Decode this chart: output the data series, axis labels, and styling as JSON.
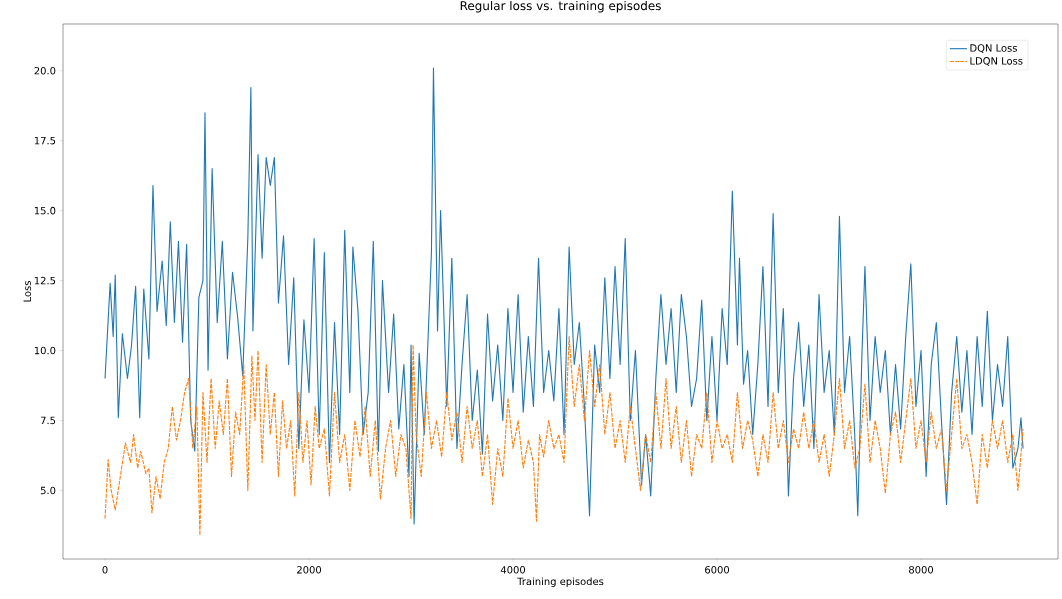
{
  "chart_data": {
    "type": "line",
    "title": "Regular loss vs. training episodes",
    "xlabel": "Training episodes",
    "ylabel": "Loss",
    "xlim": [
      -412,
      9343
    ],
    "ylim": [
      2.55,
      21.67
    ],
    "xticks": [
      0,
      2000,
      4000,
      6000,
      8000
    ],
    "yticks": [
      {
        "value": 5,
        "label": "5.0"
      },
      {
        "value": 7.5,
        "label": "7.5"
      },
      {
        "value": 10,
        "label": "10.0"
      },
      {
        "value": 12.5,
        "label": "12.5"
      },
      {
        "value": 15,
        "label": "15.0"
      },
      {
        "value": 17.5,
        "label": "17.5"
      },
      {
        "value": 20,
        "label": "20.0"
      }
    ],
    "legend": "top right",
    "grid": false,
    "marker": "none",
    "series": [
      {
        "name": "DQN Loss",
        "color": "#1f77b4",
        "line_style": "solid",
        "x": [
          0,
          50,
          80,
          100,
          130,
          170,
          220,
          260,
          300,
          340,
          380,
          430,
          470,
          510,
          560,
          600,
          640,
          680,
          720,
          760,
          800,
          840,
          880,
          920,
          960,
          980,
          1010,
          1050,
          1100,
          1150,
          1200,
          1250,
          1300,
          1350,
          1400,
          1430,
          1450,
          1500,
          1540,
          1580,
          1620,
          1660,
          1700,
          1750,
          1800,
          1850,
          1900,
          1950,
          2000,
          2050,
          2100,
          2150,
          2200,
          2250,
          2300,
          2350,
          2400,
          2430,
          2480,
          2530,
          2580,
          2630,
          2680,
          2720,
          2780,
          2830,
          2880,
          2930,
          2980,
          3000,
          3030,
          3080,
          3130,
          3200,
          3220,
          3260,
          3290,
          3350,
          3400,
          3450,
          3500,
          3550,
          3600,
          3650,
          3700,
          3750,
          3800,
          3850,
          3900,
          3950,
          4000,
          4050,
          4100,
          4150,
          4200,
          4250,
          4300,
          4350,
          4400,
          4450,
          4500,
          4550,
          4600,
          4650,
          4700,
          4750,
          4800,
          4850,
          4900,
          4950,
          5000,
          5050,
          5100,
          5150,
          5200,
          5260,
          5300,
          5350,
          5400,
          5450,
          5500,
          5550,
          5600,
          5650,
          5700,
          5750,
          5800,
          5850,
          5900,
          5950,
          6000,
          6050,
          6100,
          6150,
          6200,
          6220,
          6260,
          6300,
          6350,
          6400,
          6450,
          6500,
          6550,
          6600,
          6650,
          6700,
          6750,
          6800,
          6850,
          6900,
          6950,
          7000,
          7050,
          7100,
          7150,
          7200,
          7250,
          7300,
          7350,
          7380,
          7420,
          7450,
          7500,
          7550,
          7600,
          7650,
          7700,
          7750,
          7800,
          7850,
          7900,
          7950,
          8000,
          8050,
          8100,
          8150,
          8200,
          8250,
          8300,
          8350,
          8400,
          8450,
          8500,
          8550,
          8600,
          8650,
          8700,
          8750,
          8800,
          8850,
          8900,
          8950,
          8980,
          9000
        ],
        "values": [
          9.0,
          12.4,
          10.5,
          12.7,
          7.6,
          10.6,
          9.0,
          10.2,
          12.3,
          7.6,
          12.2,
          9.7,
          15.9,
          11.4,
          13.2,
          10.9,
          14.6,
          11.0,
          13.9,
          10.3,
          13.8,
          7.5,
          6.4,
          11.9,
          12.5,
          18.5,
          9.3,
          16.5,
          11.0,
          13.9,
          9.7,
          12.8,
          11.2,
          9.1,
          14.0,
          19.4,
          10.7,
          17.0,
          13.3,
          16.9,
          15.9,
          16.9,
          11.7,
          14.1,
          9.5,
          12.6,
          6.5,
          11.1,
          8.5,
          14.0,
          7.0,
          13.5,
          6.0,
          11.0,
          7.0,
          14.3,
          8.5,
          13.7,
          11.4,
          7.0,
          8.5,
          13.9,
          6.4,
          12.5,
          8.5,
          11.3,
          7.2,
          9.5,
          5.5,
          10.2,
          3.8,
          9.9,
          7.0,
          13.5,
          20.1,
          10.7,
          15.0,
          8.0,
          13.3,
          6.5,
          9.5,
          12.0,
          7.5,
          9.3,
          6.3,
          11.3,
          8.2,
          10.2,
          7.5,
          11.5,
          8.5,
          12.0,
          7.8,
          10.5,
          8.0,
          13.3,
          8.5,
          10.0,
          8.2,
          11.5,
          7.0,
          13.7,
          9.5,
          11.0,
          8.0,
          4.1,
          10.2,
          8.5,
          12.6,
          9.0,
          13.0,
          9.5,
          14.0,
          7.5,
          10.0,
          5.2,
          7.0,
          4.8,
          9.0,
          12.0,
          9.5,
          11.5,
          8.5,
          12.0,
          10.5,
          8.0,
          9.0,
          11.8,
          7.5,
          10.5,
          7.5,
          11.5,
          9.5,
          15.7,
          10.2,
          13.3,
          8.8,
          10.0,
          7.0,
          9.5,
          13.0,
          8.0,
          14.9,
          8.5,
          11.5,
          4.8,
          9.0,
          11.0,
          8.0,
          10.2,
          6.5,
          12.0,
          8.5,
          10.0,
          7.0,
          14.8,
          8.5,
          10.5,
          7.0,
          4.1,
          9.8,
          13.0,
          7.5,
          10.5,
          8.5,
          10.0,
          7.0,
          9.5,
          7.2,
          10.5,
          13.1,
          8.0,
          10.0,
          5.5,
          9.5,
          11.0,
          7.5,
          4.5,
          8.5,
          10.5,
          7.8,
          10.0,
          7.0,
          10.5,
          8.0,
          11.4,
          7.5,
          9.5,
          8.0,
          10.5,
          5.8,
          6.5,
          7.6,
          6.5
        ]
      },
      {
        "name": "LDQN Loss",
        "color": "#ff7f0e",
        "line_style": "dashed",
        "x": [
          0,
          30,
          60,
          100,
          150,
          200,
          250,
          280,
          320,
          350,
          400,
          430,
          460,
          500,
          540,
          580,
          620,
          660,
          700,
          740,
          780,
          820,
          860,
          900,
          930,
          960,
          1000,
          1040,
          1080,
          1120,
          1160,
          1200,
          1240,
          1280,
          1320,
          1360,
          1400,
          1440,
          1470,
          1500,
          1540,
          1580,
          1620,
          1660,
          1700,
          1740,
          1780,
          1820,
          1860,
          1900,
          1940,
          1980,
          2020,
          2060,
          2100,
          2150,
          2200,
          2250,
          2300,
          2350,
          2400,
          2450,
          2500,
          2550,
          2600,
          2650,
          2700,
          2750,
          2800,
          2850,
          2900,
          2950,
          3000,
          3020,
          3050,
          3100,
          3150,
          3200,
          3250,
          3300,
          3350,
          3400,
          3450,
          3500,
          3550,
          3600,
          3650,
          3700,
          3750,
          3800,
          3850,
          3900,
          3950,
          4000,
          4050,
          4100,
          4150,
          4200,
          4230,
          4260,
          4300,
          4350,
          4400,
          4450,
          4500,
          4550,
          4600,
          4650,
          4700,
          4750,
          4800,
          4850,
          4900,
          4950,
          5000,
          5050,
          5100,
          5150,
          5200,
          5250,
          5300,
          5350,
          5400,
          5450,
          5500,
          5550,
          5600,
          5650,
          5700,
          5750,
          5800,
          5850,
          5900,
          5950,
          6000,
          6050,
          6100,
          6150,
          6200,
          6250,
          6300,
          6350,
          6400,
          6450,
          6500,
          6550,
          6600,
          6650,
          6700,
          6750,
          6800,
          6850,
          6900,
          6950,
          7000,
          7050,
          7100,
          7150,
          7200,
          7250,
          7300,
          7350,
          7400,
          7450,
          7500,
          7550,
          7600,
          7650,
          7700,
          7750,
          7800,
          7850,
          7900,
          7950,
          8000,
          8050,
          8100,
          8150,
          8200,
          8250,
          8300,
          8350,
          8400,
          8450,
          8500,
          8550,
          8600,
          8650,
          8700,
          8750,
          8800,
          8850,
          8900,
          8950,
          9000
        ],
        "values": [
          4.0,
          6.1,
          5.0,
          4.3,
          5.5,
          6.7,
          6.0,
          7.0,
          5.8,
          6.4,
          5.6,
          5.8,
          4.2,
          5.5,
          4.7,
          6.0,
          6.5,
          8.0,
          6.8,
          7.5,
          8.5,
          9.0,
          6.5,
          8.0,
          3.4,
          8.5,
          6.0,
          9.0,
          6.5,
          8.2,
          7.0,
          9.0,
          5.5,
          7.8,
          7.0,
          9.5,
          5.0,
          9.8,
          7.5,
          10.0,
          6.0,
          9.5,
          7.0,
          8.5,
          5.5,
          8.2,
          6.5,
          7.5,
          4.8,
          8.5,
          6.0,
          7.5,
          5.2,
          8.0,
          6.5,
          7.2,
          4.8,
          8.5,
          6.0,
          7.0,
          5.0,
          7.5,
          6.2,
          8.0,
          5.5,
          7.5,
          4.7,
          6.5,
          7.5,
          5.5,
          7.0,
          6.5,
          4.0,
          10.2,
          7.0,
          5.5,
          8.5,
          6.5,
          7.5,
          6.2,
          8.5,
          6.8,
          7.8,
          6.0,
          8.0,
          6.5,
          7.5,
          5.5,
          7.0,
          4.5,
          6.5,
          5.5,
          8.3,
          6.5,
          7.5,
          5.8,
          6.8,
          6.0,
          3.9,
          7.0,
          6.2,
          7.5,
          6.5,
          7.0,
          6.0,
          10.5,
          8.0,
          9.5,
          7.5,
          10.0,
          8.0,
          9.5,
          7.0,
          8.5,
          6.5,
          7.5,
          6.0,
          8.0,
          6.5,
          5.0,
          7.0,
          6.0,
          8.5,
          6.5,
          9.0,
          6.5,
          8.0,
          6.0,
          7.5,
          5.5,
          7.0,
          6.5,
          8.5,
          6.0,
          7.5,
          6.5,
          7.0,
          6.0,
          8.5,
          6.5,
          7.5,
          6.8,
          5.5,
          7.0,
          6.0,
          8.5,
          6.5,
          7.5,
          6.0,
          7.2,
          6.5,
          7.8,
          6.5,
          7.5,
          6.0,
          7.0,
          5.5,
          7.0,
          9.0,
          6.5,
          7.5,
          5.8,
          6.5,
          8.8,
          6.0,
          7.5,
          6.5,
          4.9,
          7.0,
          7.8,
          6.0,
          7.5,
          9.0,
          6.5,
          7.5,
          6.0,
          7.8,
          6.5,
          7.2,
          5.0,
          7.0,
          9.0,
          6.5,
          7.0,
          6.0,
          4.5,
          7.0,
          5.8,
          7.5,
          6.5,
          7.5,
          6.0,
          7.0,
          5.0,
          7.2
        ]
      }
    ]
  }
}
